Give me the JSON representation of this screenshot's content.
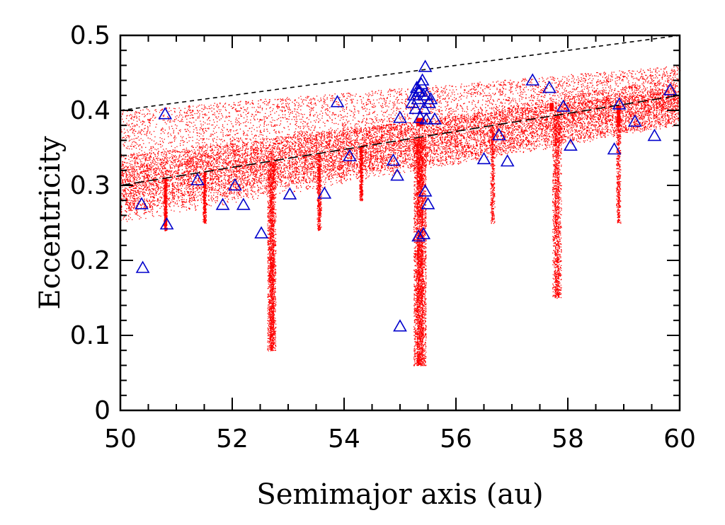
{
  "chart_data": {
    "type": "scatter",
    "title": "",
    "xlabel": "Semimajor axis (au)",
    "ylabel": "Eccentricity",
    "xlim": [
      50,
      60
    ],
    "ylim": [
      0,
      0.5
    ],
    "xticks": [
      "50",
      "52",
      "54",
      "56",
      "58",
      "60"
    ],
    "yticks": [
      "0",
      "0.1",
      "0.2",
      "0.3",
      "0.4",
      "0.5"
    ],
    "grid": false,
    "colors": {
      "particles": "#ff0000",
      "observed": "#0000cc",
      "guides": "#000000"
    },
    "guide_lines": [
      {
        "style": "dashed",
        "x": [
          50,
          60
        ],
        "y": [
          0.4,
          0.5
        ]
      },
      {
        "style": "long-dashed",
        "x": [
          50,
          60
        ],
        "y": [
          0.3,
          0.42
        ]
      }
    ],
    "series": [
      {
        "marker": "triangle",
        "x": [
          50.38,
          50.8,
          50.83,
          50.4,
          51.38,
          51.83,
          52.05,
          52.2,
          52.52,
          53.03,
          53.65,
          53.88,
          54.1,
          54.88,
          54.95,
          55.0,
          55.0,
          55.22,
          55.25,
          55.28,
          55.3,
          55.32,
          55.33,
          55.35,
          55.36,
          55.38,
          55.4,
          55.42,
          55.43,
          55.45,
          55.47,
          55.48,
          55.5,
          55.52,
          55.55,
          55.62,
          55.33,
          55.42,
          56.5,
          56.77,
          56.92,
          57.37,
          57.67,
          57.92,
          58.05,
          58.83,
          58.92,
          59.2,
          59.55,
          59.83,
          55.45
        ],
        "y": [
          0.275,
          0.395,
          0.248,
          0.19,
          0.307,
          0.274,
          0.3,
          0.274,
          0.236,
          0.288,
          0.289,
          0.411,
          0.339,
          0.333,
          0.313,
          0.39,
          0.112,
          0.41,
          0.42,
          0.402,
          0.43,
          0.415,
          0.232,
          0.425,
          0.39,
          0.435,
          0.44,
          0.42,
          0.402,
          0.292,
          0.388,
          0.42,
          0.275,
          0.41,
          0.415,
          0.388,
          0.425,
          0.235,
          0.335,
          0.367,
          0.332,
          0.44,
          0.43,
          0.405,
          0.353,
          0.348,
          0.408,
          0.385,
          0.366,
          0.427,
          0.458
        ]
      }
    ]
  }
}
